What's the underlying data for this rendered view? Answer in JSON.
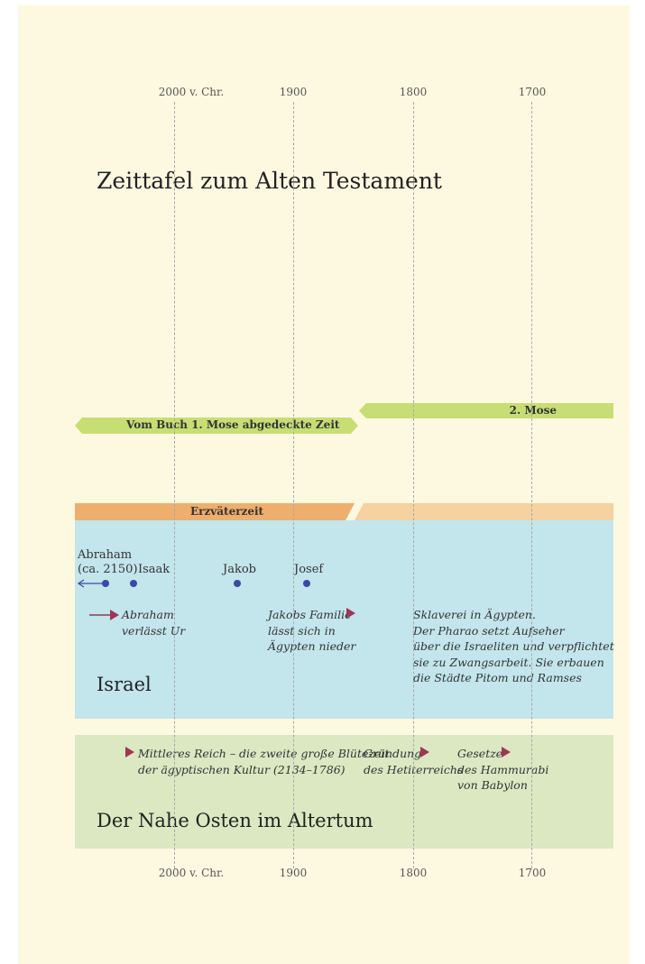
{
  "axis": {
    "top_ticks": [
      "2000 v. Chr.",
      "1900",
      "1800",
      "1700"
    ],
    "bottom_ticks": [
      "2000 v. Chr.",
      "1900",
      "1800",
      "1700"
    ]
  },
  "title": "Zeittafel zum Alten Testament",
  "bands": {
    "genesis": "Vom Buch 1. Mose abgedeckte Zeit",
    "exodus": "2. Mose",
    "patriarchs": "Erzväterzeit"
  },
  "israel": {
    "heading": "Israel",
    "people": {
      "abraham_line1": "Abraham",
      "abraham_line2": "(ca. 2150)",
      "isaak": "Isaak",
      "jakob": "Jakob",
      "josef": "Josef"
    },
    "events": {
      "abraham_ur": [
        "Abraham",
        "verlässt Ur"
      ],
      "jakob_family": [
        "Jakobs Familie",
        "lässt sich in",
        "Ägypten nieder"
      ],
      "slavery": [
        "Sklaverei in Ägypten.",
        "Der Pharao setzt Aufseher",
        "über die Israeliten und verpflichtet",
        "sie zu Zwangsarbeit. Sie erbauen",
        "die Städte Pitom und Ramses"
      ]
    }
  },
  "near_east": {
    "heading": "Der Nahe Osten im Altertum",
    "events": {
      "middle_kingdom": [
        "Mittleres Reich – die zweite große Blütezeit",
        "der ägyptischen Kultur (2134–1786)"
      ],
      "hittite": [
        "Gründung",
        "des Hetiterreichs"
      ],
      "hammurabi": [
        "Gesetze",
        "des Hammurabi",
        "von Babylon"
      ]
    }
  },
  "colors": {
    "page": "#fdf9e1",
    "green_band": "#c7de74",
    "orange_band": "#eeae6d",
    "israel_bg": "#c3e5ec",
    "near_east_bg": "#dbe8c2",
    "dot": "#3b4aa3",
    "marker": "#a13555"
  }
}
